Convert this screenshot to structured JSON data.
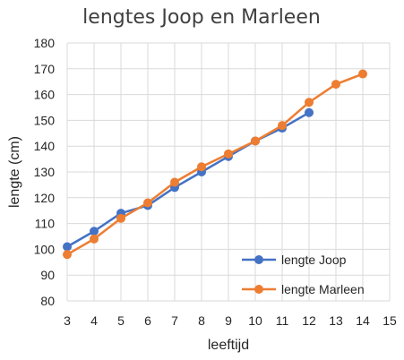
{
  "colors": {
    "joop": "#4472c4",
    "marleen": "#ed7d31",
    "grid": "#d9d9d9"
  },
  "chart_data": {
    "type": "line",
    "title": "lengtes Joop en Marleen",
    "xlabel": "leeftijd",
    "ylabel": "lengte (cm)",
    "xlim": [
      3,
      15
    ],
    "ylim": [
      80,
      180
    ],
    "xticks": [
      "3",
      "4",
      "5",
      "6",
      "7",
      "8",
      "9",
      "10",
      "11",
      "12",
      "13",
      "14",
      "15"
    ],
    "yticks": [
      "80",
      "90",
      "100",
      "110",
      "120",
      "130",
      "140",
      "150",
      "160",
      "170",
      "180"
    ],
    "grid": true,
    "legend_position": "bottom-right",
    "series": [
      {
        "name": "lengte Joop",
        "color": "#4472c4",
        "x": [
          3,
          4,
          5,
          6,
          7,
          8,
          9,
          10,
          11,
          12
        ],
        "y": [
          101,
          107,
          114,
          117,
          124,
          130,
          136,
          142,
          147,
          153
        ]
      },
      {
        "name": "lengte Marleen",
        "color": "#ed7d31",
        "x": [
          3,
          4,
          5,
          6,
          7,
          8,
          9,
          10,
          11,
          12,
          13,
          14
        ],
        "y": [
          98,
          104,
          112,
          118,
          126,
          132,
          137,
          142,
          148,
          157,
          164,
          168
        ]
      }
    ]
  }
}
